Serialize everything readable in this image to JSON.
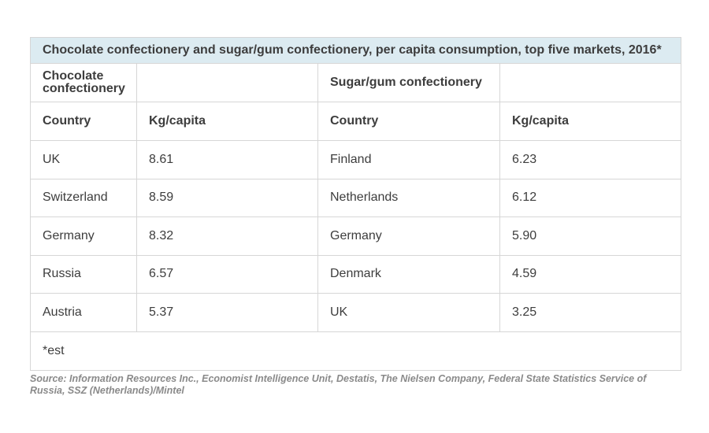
{
  "chart_data": {
    "type": "table",
    "title": "Chocolate confectionery and sugar/gum confectionery, per capita consumption, top five markets, 2016*",
    "groups": [
      {
        "name": "Chocolate confectionery",
        "columns": [
          "Country",
          "Kg/capita"
        ],
        "rows": [
          {
            "country": "UK",
            "value": "8.61"
          },
          {
            "country": "Switzerland",
            "value": "8.59"
          },
          {
            "country": "Germany",
            "value": "8.32"
          },
          {
            "country": "Russia",
            "value": "6.57"
          },
          {
            "country": "Austria",
            "value": "5.37"
          }
        ]
      },
      {
        "name": "Sugar/gum confectionery",
        "columns": [
          "Country",
          "Kg/capita"
        ],
        "rows": [
          {
            "country": "Finland",
            "value": "6.23"
          },
          {
            "country": "Netherlands",
            "value": "6.12"
          },
          {
            "country": "Germany",
            "value": "5.90"
          },
          {
            "country": "Denmark",
            "value": "4.59"
          },
          {
            "country": "UK",
            "value": "3.25"
          }
        ]
      }
    ],
    "footnote": "*est",
    "source": "Source: Information Resources Inc., Economist Intelligence Unit, Destatis, The Nielsen Company, Federal State Statistics Service of Russia, SSZ (Netherlands)/Mintel"
  },
  "colors": {
    "title_background": "#dcebf1",
    "border": "#d6d6d6",
    "text": "#3d3d3d",
    "source_text": "#8a8a8a"
  }
}
